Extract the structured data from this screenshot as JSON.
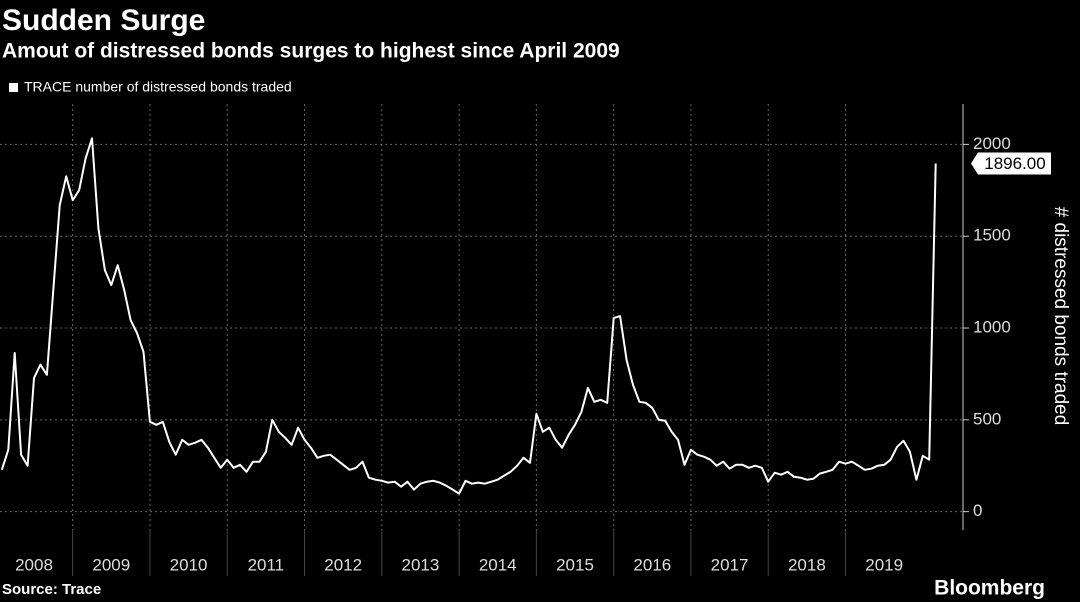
{
  "chart_data": {
    "type": "line",
    "title": "Sudden Surge",
    "subtitle": "Amout of distressed bonds surges to highest since April 2009",
    "y_label": "# distressed bonds traded",
    "source": "Source: Trace",
    "brand": "Bloomberg",
    "x": [
      2008.083,
      2008.167,
      2008.25,
      2008.333,
      2008.417,
      2008.5,
      2008.583,
      2008.667,
      2008.75,
      2008.833,
      2008.917,
      2009,
      2009.083,
      2009.167,
      2009.25,
      2009.333,
      2009.417,
      2009.5,
      2009.583,
      2009.667,
      2009.75,
      2009.833,
      2009.917,
      2010,
      2010.083,
      2010.167,
      2010.25,
      2010.333,
      2010.417,
      2010.5,
      2010.583,
      2010.667,
      2010.75,
      2010.833,
      2010.917,
      2011,
      2011.083,
      2011.167,
      2011.25,
      2011.333,
      2011.417,
      2011.5,
      2011.583,
      2011.667,
      2011.75,
      2011.833,
      2011.917,
      2012,
      2012.083,
      2012.167,
      2012.25,
      2012.333,
      2012.417,
      2012.5,
      2012.583,
      2012.667,
      2012.75,
      2012.833,
      2012.917,
      2013,
      2013.083,
      2013.167,
      2013.25,
      2013.333,
      2013.417,
      2013.5,
      2013.583,
      2013.667,
      2013.75,
      2013.833,
      2013.917,
      2014,
      2014.083,
      2014.167,
      2014.25,
      2014.333,
      2014.417,
      2014.5,
      2014.583,
      2014.667,
      2014.75,
      2014.833,
      2014.917,
      2015,
      2015.083,
      2015.167,
      2015.25,
      2015.333,
      2015.417,
      2015.5,
      2015.583,
      2015.667,
      2015.75,
      2015.833,
      2015.917,
      2016,
      2016.083,
      2016.167,
      2016.25,
      2016.333,
      2016.417,
      2016.5,
      2016.583,
      2016.667,
      2016.75,
      2016.833,
      2016.917,
      2017,
      2017.083,
      2017.167,
      2017.25,
      2017.333,
      2017.417,
      2017.5,
      2017.583,
      2017.667,
      2017.75,
      2017.833,
      2017.917,
      2018,
      2018.083,
      2018.167,
      2018.25,
      2018.333,
      2018.417,
      2018.5,
      2018.583,
      2018.667,
      2018.75,
      2018.833,
      2018.917,
      2019,
      2019.083,
      2019.167,
      2019.25,
      2019.333,
      2019.417,
      2019.5,
      2019.583,
      2019.667,
      2019.75,
      2019.833,
      2019.917,
      2020,
      2020.083,
      2020.167
    ],
    "series": [
      {
        "name": "TRACE number of distressed bonds traded",
        "color": "#ffffff",
        "values": [
          228,
          337,
          864,
          310,
          250,
          728,
          800,
          745,
          1207,
          1668,
          1826,
          1696,
          1750,
          1924,
          2033,
          1543,
          1315,
          1234,
          1342,
          1207,
          1043,
          973,
          870,
          489,
          473,
          489,
          380,
          310,
          391,
          364,
          375,
          391,
          348,
          293,
          239,
          283,
          239,
          255,
          217,
          272,
          272,
          326,
          500,
          435,
          402,
          364,
          457,
          391,
          348,
          293,
          304,
          310,
          283,
          255,
          228,
          239,
          272,
          185,
          174,
          168,
          158,
          163,
          136,
          163,
          120,
          152,
          163,
          168,
          158,
          141,
          120,
          98,
          168,
          152,
          158,
          152,
          163,
          174,
          196,
          217,
          250,
          293,
          266,
          533,
          435,
          457,
          391,
          348,
          418,
          473,
          543,
          674,
          598,
          609,
          592,
          1054,
          1065,
          826,
          690,
          598,
          592,
          565,
          500,
          495,
          435,
          391,
          255,
          337,
          310,
          299,
          283,
          250,
          272,
          234,
          255,
          255,
          239,
          250,
          239,
          163,
          212,
          201,
          217,
          190,
          185,
          174,
          179,
          207,
          217,
          228,
          272,
          261,
          272,
          250,
          228,
          234,
          250,
          255,
          283,
          353,
          386,
          326,
          174,
          304,
          283,
          1896
        ],
        "value_labels": [
          null,
          null,
          null,
          null,
          null,
          null,
          null,
          null,
          null,
          null,
          null,
          null,
          null,
          null,
          null,
          null,
          null,
          null,
          null,
          null,
          null,
          null,
          null,
          null,
          null,
          null,
          null,
          null,
          null,
          null,
          null,
          null,
          null,
          null,
          null,
          null,
          null,
          null,
          null,
          null,
          null,
          null,
          null,
          null,
          null,
          null,
          null,
          null,
          null,
          null,
          null,
          null,
          null,
          null,
          null,
          null,
          null,
          null,
          null,
          null,
          null,
          null,
          null,
          null,
          null,
          null,
          null,
          null,
          null,
          null,
          null,
          null,
          null,
          null,
          null,
          null,
          null,
          null,
          null,
          null,
          null,
          null,
          null,
          null,
          null,
          null,
          null,
          null,
          null,
          null,
          null,
          null,
          null,
          null,
          null,
          null,
          null,
          null,
          null,
          null,
          null,
          null,
          null,
          null,
          null,
          null,
          null,
          null,
          null,
          null,
          null,
          null,
          null,
          null,
          null,
          null,
          null,
          null,
          null,
          null,
          null,
          null,
          null,
          null,
          null,
          null,
          null,
          null,
          null,
          null,
          null,
          null,
          null,
          null,
          null,
          null,
          null,
          null,
          null,
          null,
          null,
          null,
          null,
          null,
          null,
          "1896.00"
        ]
      }
    ],
    "xlim": [
      2008.06,
      2020.52
    ],
    "xticks": [
      {
        "value": 2008,
        "label": "2008"
      },
      {
        "value": 2009,
        "label": "2009"
      },
      {
        "value": 2010,
        "label": "2010"
      },
      {
        "value": 2011,
        "label": "2011"
      },
      {
        "value": 2012,
        "label": "2012"
      },
      {
        "value": 2013,
        "label": "2013"
      },
      {
        "value": 2014,
        "label": "2014"
      },
      {
        "value": 2015,
        "label": "2015"
      },
      {
        "value": 2016,
        "label": "2016"
      },
      {
        "value": 2017,
        "label": "2017"
      },
      {
        "value": 2018,
        "label": "2018"
      },
      {
        "value": 2019,
        "label": "2019"
      }
    ],
    "ylim": [
      -100,
      2220
    ],
    "yticks": [
      0,
      500,
      1000,
      1500,
      2000
    ],
    "grid": true,
    "legend": "top-left"
  }
}
